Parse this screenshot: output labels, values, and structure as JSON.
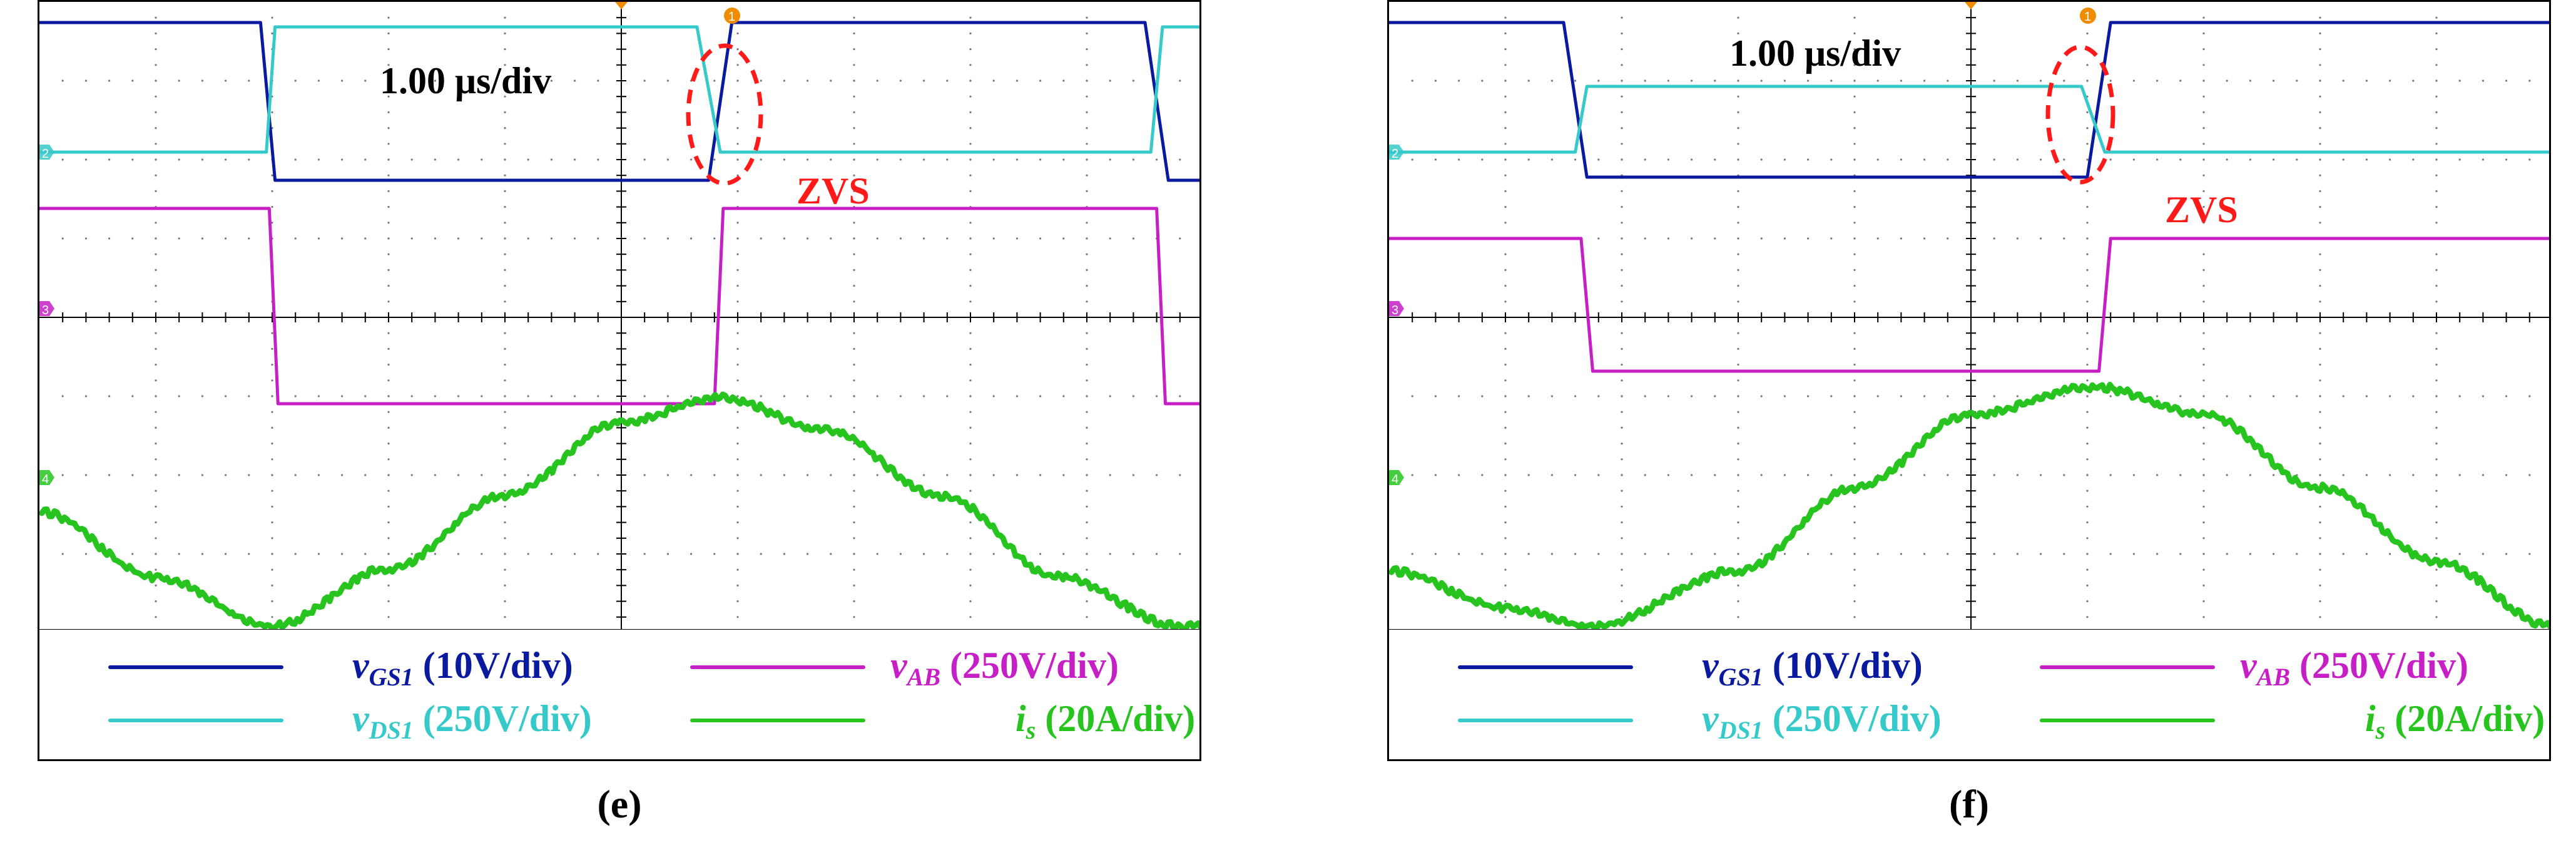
{
  "colors": {
    "vgs": "#0a1a9e",
    "vds": "#36c9c9",
    "vab": "#c51fc5",
    "is": "#27c41f",
    "marker": "#f08c00",
    "zvs": "#ff1a1a"
  },
  "panels": [
    {
      "caption": "(e)",
      "timebase": "1.00 μs/div",
      "annotation": "ZVS",
      "trigger_marker": "1",
      "channel_markers": [
        "2",
        "3",
        "4"
      ]
    },
    {
      "caption": "(f)",
      "timebase": "1.00 μs/div",
      "annotation": "ZVS",
      "trigger_marker": "1",
      "channel_markers": [
        "2",
        "3",
        "4"
      ]
    }
  ],
  "legend": [
    {
      "symbol": "v",
      "subscript": "GS1",
      "scale": "(10V/div)",
      "color": "#0a1a9e"
    },
    {
      "symbol": "v",
      "subscript": "AB",
      "scale": "(250V/div)",
      "color": "#c51fc5"
    },
    {
      "symbol": "v",
      "subscript": "DS1",
      "scale": "(250V/div)",
      "color": "#36c9c9"
    },
    {
      "symbol": "i",
      "subscript": "s",
      "scale": "(20A/div)",
      "color": "#27c41f"
    }
  ],
  "chart_data": [
    {
      "type": "line",
      "title": "",
      "xunit": "μs",
      "series": [
        {
          "name": "vGS1",
          "x": [
            0,
            3.8,
            4.05,
            11.5,
            11.9,
            19.0,
            19.4,
            20
          ],
          "y": [
            10,
            10,
            -2,
            -2,
            10,
            10,
            -2,
            -2
          ]
        },
        {
          "name": "vDS1",
          "x": [
            0,
            3.9,
            4.05,
            11.3,
            11.7,
            19.1,
            19.3,
            20
          ],
          "y": [
            0,
            0,
            500,
            500,
            0,
            0,
            500,
            500
          ]
        },
        {
          "name": "vAB",
          "x": [
            0,
            3.95,
            4.1,
            11.6,
            11.75,
            19.2,
            19.35,
            20
          ],
          "y": [
            250,
            250,
            -250,
            -250,
            250,
            250,
            -250,
            -250
          ]
        },
        {
          "name": "is",
          "x": [
            0,
            2,
            4,
            6,
            8,
            10,
            11.7,
            13.5,
            15.5,
            17.5,
            19.6,
            20
          ],
          "y": [
            14,
            6,
            0,
            7,
            16,
            25,
            28,
            24,
            16,
            6,
            0,
            0
          ]
        }
      ]
    },
    {
      "type": "line",
      "title": "",
      "xunit": "μs",
      "series": [
        {
          "name": "vGS1",
          "x": [
            0,
            3.0,
            3.4,
            12.0,
            12.4,
            20
          ],
          "y": [
            10,
            10,
            -2,
            -2,
            10,
            10
          ]
        },
        {
          "name": "vDS1",
          "x": [
            0,
            3.2,
            3.4,
            11.9,
            12.3,
            20
          ],
          "y": [
            0,
            0,
            500,
            500,
            0,
            0
          ]
        },
        {
          "name": "vAB",
          "x": [
            0,
            3.3,
            3.5,
            12.2,
            12.4,
            20
          ],
          "y": [
            250,
            250,
            -250,
            -250,
            250,
            250
          ]
        },
        {
          "name": "is",
          "x": [
            0,
            2,
            3.5,
            6,
            8,
            10,
            12.1,
            14,
            16,
            18,
            20
          ],
          "y": [
            6,
            2,
            0,
            6,
            15,
            23,
            26,
            23,
            15,
            7,
            0
          ]
        }
      ]
    }
  ]
}
